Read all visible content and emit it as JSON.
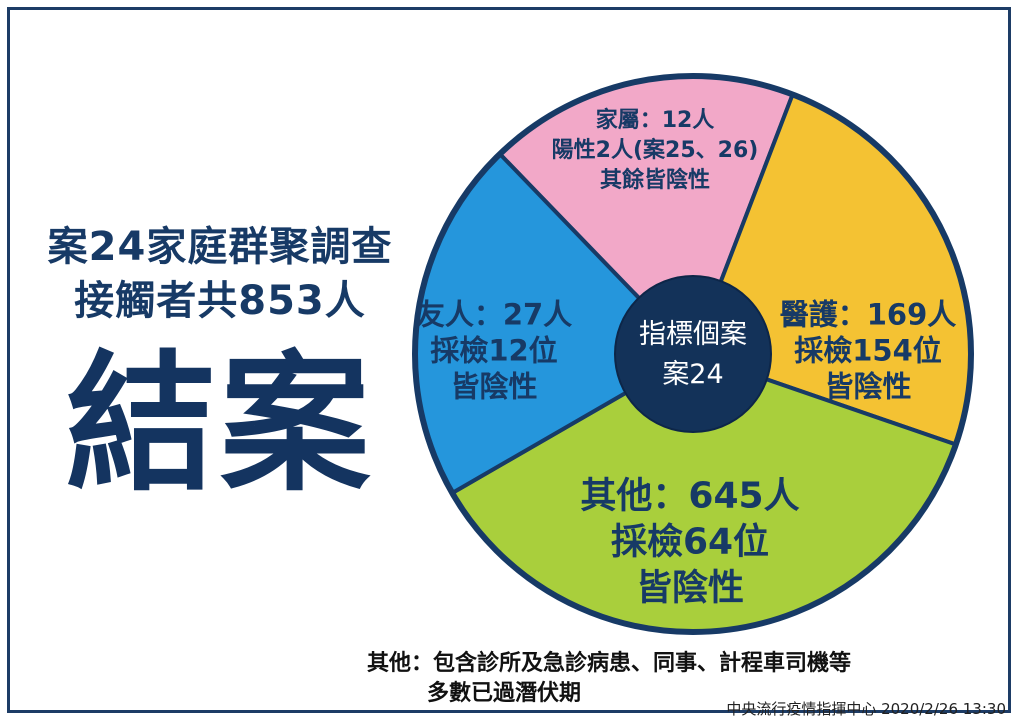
{
  "header": {
    "subtitle_line1": "案24家庭群聚調查",
    "subtitle_line2": "接觸者共853人",
    "title": "結案"
  },
  "chart_data": {
    "type": "pie",
    "center_label": [
      "指標個案",
      "案24"
    ],
    "slices": [
      {
        "key": "family",
        "value": 12,
        "color": "#f2a8c8",
        "text_color": "#173a66",
        "labels": [
          "家屬：12人",
          "陽性2人(案25、26)",
          "其餘皆陰性"
        ]
      },
      {
        "key": "medical",
        "value": 169,
        "color": "#f4c233",
        "text_color": "#173a66",
        "labels": [
          "醫護：169人",
          "採檢154位",
          "皆陰性"
        ]
      },
      {
        "key": "other",
        "value": 645,
        "color": "#a9cf3c",
        "text_color": "#173a66",
        "labels": [
          "其他：645人",
          "採檢64位",
          "皆陰性"
        ]
      },
      {
        "key": "friends",
        "value": 27,
        "color": "#2596dc",
        "text_color": "#173a66",
        "labels": [
          "友人：27人",
          "採檢12位",
          "皆陰性"
        ]
      }
    ]
  },
  "footnote": {
    "line1": "其他：包含診所及急診病患、同事、計程車司機等",
    "line2": "多數已過潛伏期"
  },
  "source": "中央流行疫情指揮中心 2020/2/26 13:30"
}
